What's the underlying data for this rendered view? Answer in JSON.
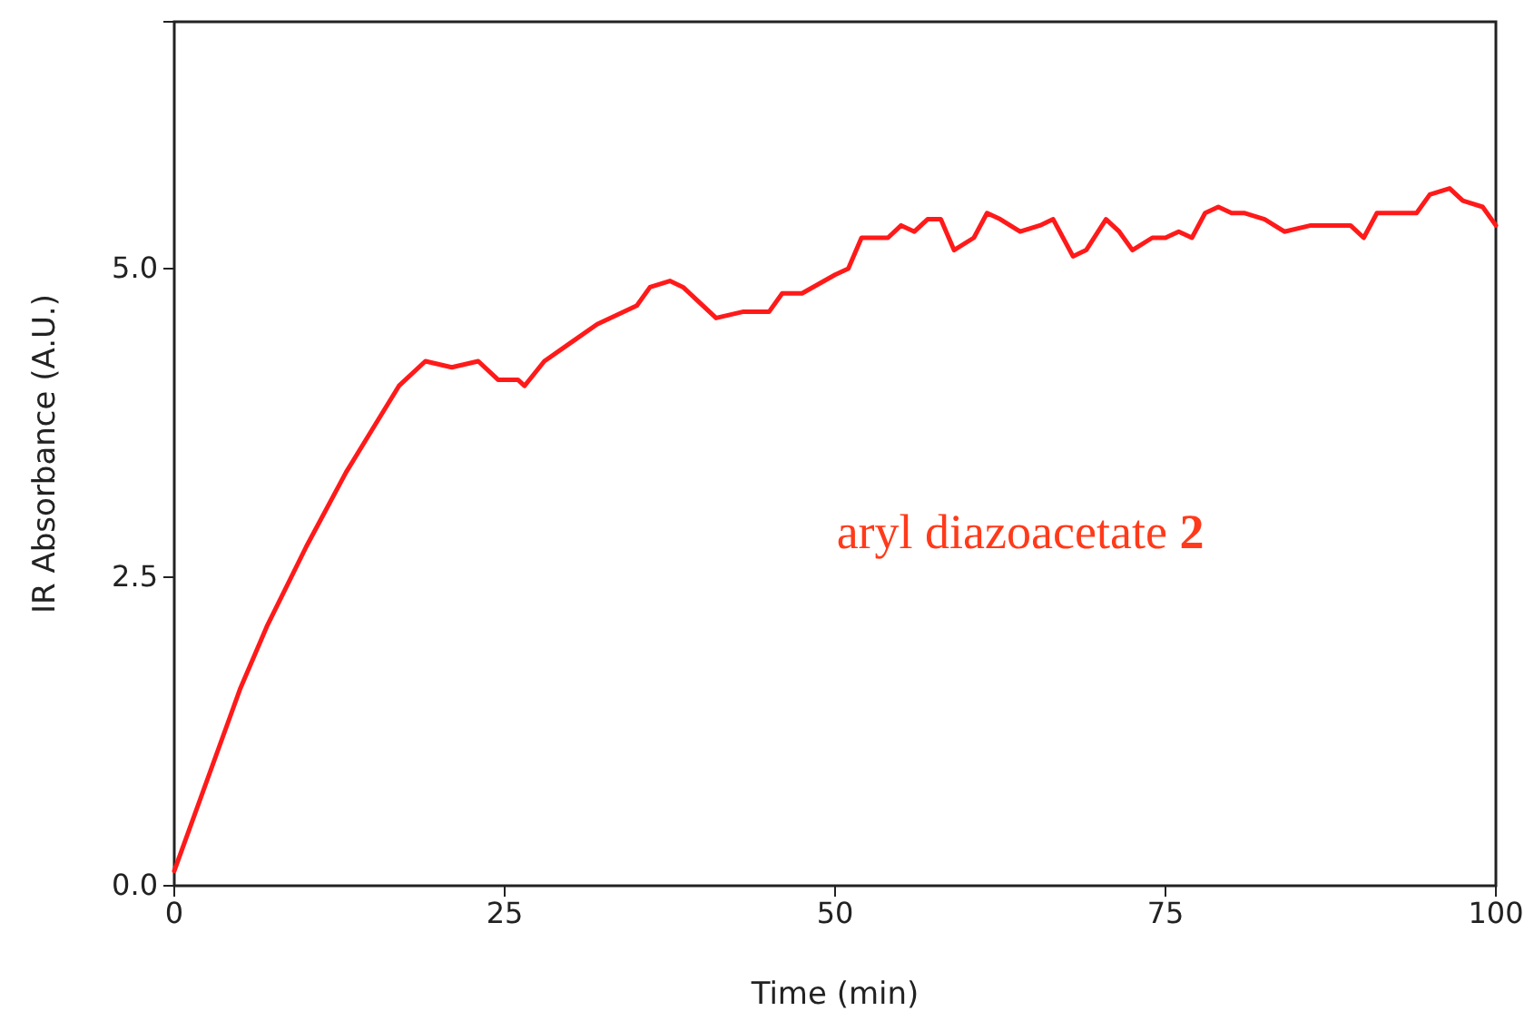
{
  "chart_data": {
    "type": "line",
    "xlabel": "Time (min)",
    "ylabel": "IR Absorbance (A.U.)",
    "x": [
      0,
      5,
      7,
      10,
      13,
      15,
      17,
      19,
      21,
      23,
      24.5,
      26,
      26.5,
      28,
      30,
      32,
      35,
      36,
      37.5,
      38.5,
      41,
      43,
      45,
      46,
      47.5,
      50,
      51,
      52,
      54,
      55,
      56,
      57,
      58,
      59,
      60.5,
      61.5,
      62.5,
      64,
      65.5,
      66.5,
      68,
      69,
      70.5,
      71.5,
      72.5,
      74,
      75,
      76,
      77,
      78,
      79,
      80,
      81,
      82.5,
      84,
      86,
      88,
      89,
      90,
      91,
      93,
      94,
      95,
      96.5,
      97.5,
      99,
      100
    ],
    "series": [
      {
        "color": "#ff1a1a",
        "values": [
          0.12,
          1.6,
          2.1,
          2.75,
          3.35,
          3.7,
          4.05,
          4.25,
          4.2,
          4.25,
          4.1,
          4.1,
          4.05,
          4.25,
          4.4,
          4.55,
          4.7,
          4.85,
          4.9,
          4.85,
          4.6,
          4.65,
          4.65,
          4.8,
          4.8,
          4.95,
          5.0,
          5.25,
          5.25,
          5.35,
          5.3,
          5.4,
          5.4,
          5.15,
          5.25,
          5.45,
          5.4,
          5.3,
          5.35,
          5.4,
          5.1,
          5.15,
          5.4,
          5.3,
          5.15,
          5.25,
          5.25,
          5.3,
          5.25,
          5.45,
          5.5,
          5.45,
          5.45,
          5.4,
          5.3,
          5.35,
          5.35,
          5.35,
          5.25,
          5.45,
          5.45,
          5.45,
          5.6,
          5.65,
          5.55,
          5.5,
          5.35
        ]
      }
    ],
    "xlim": [
      0,
      100
    ],
    "ylim": [
      0,
      7
    ],
    "xticks": [
      0,
      25,
      50,
      75,
      100
    ],
    "yticks": [
      {
        "value": 0,
        "label": "0.0"
      },
      {
        "value": 2.5,
        "label": "2.5"
      },
      {
        "value": 5,
        "label": "5.0"
      }
    ],
    "marker": "none",
    "line_style": "solid",
    "annotations": [
      "aryl diazoacetate 2"
    ]
  }
}
